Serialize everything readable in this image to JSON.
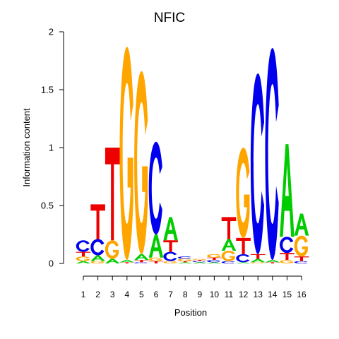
{
  "chart_data": {
    "type": "sequence-logo",
    "title": "NFIC",
    "xlabel": "Position",
    "ylabel": "Information content",
    "ylim": [
      0,
      2
    ],
    "yticks": [
      "0",
      "0.5",
      "1",
      "1.5",
      "2"
    ],
    "xticks": [
      "1",
      "2",
      "3",
      "4",
      "5",
      "6",
      "7",
      "8",
      "9",
      "10",
      "11",
      "12",
      "13",
      "14",
      "15",
      "16"
    ],
    "grid": false,
    "legend": "none",
    "colors": {
      "A": "#00cc00",
      "C": "#0000ee",
      "G": "#ffa500",
      "T": "#ee0000"
    },
    "positions": [
      {
        "pos": 1,
        "letters": [
          [
            "A",
            0.02
          ],
          [
            "G",
            0.04
          ],
          [
            "T",
            0.04
          ],
          [
            "C",
            0.1
          ]
        ]
      },
      {
        "pos": 2,
        "letters": [
          [
            "G",
            0.02
          ],
          [
            "A",
            0.05
          ],
          [
            "C",
            0.14
          ],
          [
            "T",
            0.3
          ]
        ]
      },
      {
        "pos": 3,
        "letters": [
          [
            "A",
            0.04
          ],
          [
            "G",
            0.16
          ],
          [
            "T",
            0.8
          ]
        ]
      },
      {
        "pos": 4,
        "letters": [
          [
            "T",
            0.01
          ],
          [
            "A",
            0.02
          ],
          [
            "G",
            1.84
          ]
        ]
      },
      {
        "pos": 5,
        "letters": [
          [
            "C",
            0.01
          ],
          [
            "T",
            0.02
          ],
          [
            "A",
            0.05
          ],
          [
            "G",
            1.58
          ]
        ]
      },
      {
        "pos": 6,
        "letters": [
          [
            "T",
            0.02
          ],
          [
            "G",
            0.03
          ],
          [
            "A",
            0.2
          ],
          [
            "C",
            0.8
          ]
        ]
      },
      {
        "pos": 7,
        "letters": [
          [
            "G",
            0.02
          ],
          [
            "C",
            0.08
          ],
          [
            "T",
            0.1
          ],
          [
            "A",
            0.2
          ]
        ]
      },
      {
        "pos": 8,
        "letters": [
          [
            "A",
            0.01
          ],
          [
            "T",
            0.01
          ],
          [
            "G",
            0.02
          ],
          [
            "C",
            0.02
          ]
        ]
      },
      {
        "pos": 9,
        "letters": [
          [
            "A",
            0.01
          ],
          [
            "C",
            0.01
          ],
          [
            "T",
            0.01
          ],
          [
            "G",
            0.01
          ]
        ]
      },
      {
        "pos": 10,
        "letters": [
          [
            "A",
            0.01
          ],
          [
            "C",
            0.02
          ],
          [
            "T",
            0.02
          ],
          [
            "G",
            0.03
          ]
        ]
      },
      {
        "pos": 11,
        "letters": [
          [
            "C",
            0.02
          ],
          [
            "G",
            0.09
          ],
          [
            "A",
            0.1
          ],
          [
            "T",
            0.19
          ]
        ]
      },
      {
        "pos": 12,
        "letters": [
          [
            "A",
            0.01
          ],
          [
            "C",
            0.07
          ],
          [
            "T",
            0.14
          ],
          [
            "G",
            0.78
          ]
        ]
      },
      {
        "pos": 13,
        "letters": [
          [
            "G",
            0.01
          ],
          [
            "A",
            0.03
          ],
          [
            "T",
            0.04
          ],
          [
            "C",
            1.56
          ]
        ]
      },
      {
        "pos": 14,
        "letters": [
          [
            "T",
            0.01
          ],
          [
            "A",
            0.02
          ],
          [
            "C",
            1.83
          ]
        ]
      },
      {
        "pos": 15,
        "letters": [
          [
            "G",
            0.03
          ],
          [
            "T",
            0.06
          ],
          [
            "C",
            0.14
          ],
          [
            "A",
            0.8
          ]
        ]
      },
      {
        "pos": 16,
        "letters": [
          [
            "C",
            0.02
          ],
          [
            "T",
            0.04
          ],
          [
            "G",
            0.18
          ],
          [
            "A",
            0.19
          ]
        ]
      }
    ]
  }
}
